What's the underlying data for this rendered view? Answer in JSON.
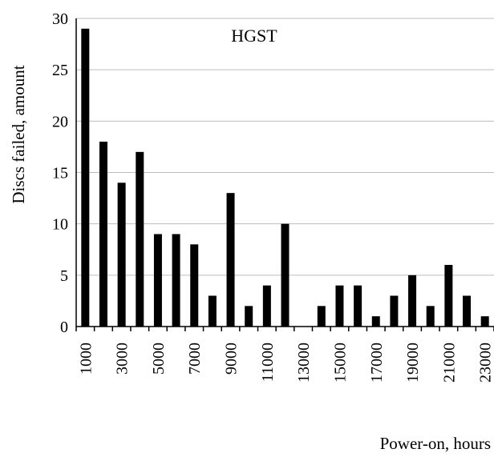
{
  "chart_data": {
    "type": "bar",
    "title": "HGST",
    "xlabel": "Power-on, hours",
    "ylabel": "Discs failed, amount",
    "ylim": [
      0,
      30
    ],
    "yticks": [
      0,
      5,
      10,
      15,
      20,
      25,
      30
    ],
    "grid": true,
    "legend": "none",
    "bar_color": "#000000",
    "categories": [
      1000,
      2000,
      3000,
      4000,
      5000,
      6000,
      7000,
      8000,
      9000,
      10000,
      11000,
      12000,
      13000,
      14000,
      15000,
      16000,
      17000,
      18000,
      19000,
      20000,
      21000,
      22000,
      23000
    ],
    "values": [
      29,
      18,
      14,
      17,
      9,
      9,
      8,
      3,
      13,
      2,
      4,
      10,
      0,
      2,
      4,
      4,
      1,
      3,
      5,
      2,
      6,
      3,
      1
    ],
    "xtick_labels": [
      {
        "category": 1000,
        "text": "1000"
      },
      {
        "category": 3000,
        "text": "3000"
      },
      {
        "category": 5000,
        "text": "5000"
      },
      {
        "category": 7000,
        "text": "7000"
      },
      {
        "category": 9000,
        "text": "9000"
      },
      {
        "category": 11000,
        "text": "11000"
      },
      {
        "category": 13000,
        "text": "13000"
      },
      {
        "category": 15000,
        "text": "15000"
      },
      {
        "category": 17000,
        "text": "17000"
      },
      {
        "category": 19000,
        "text": "19000"
      },
      {
        "category": 21000,
        "text": "21000"
      },
      {
        "category": 23000,
        "text": "23000"
      }
    ]
  }
}
